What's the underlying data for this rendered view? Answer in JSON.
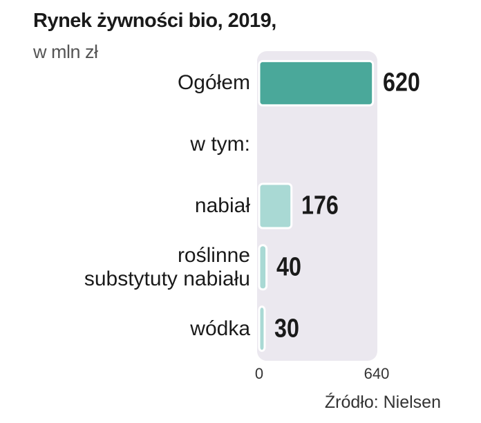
{
  "chart_data": {
    "type": "bar",
    "orientation": "horizontal",
    "title": "Rynek żywności bio, 2019,",
    "subtitle": "w mln zł",
    "categories": [
      "Ogółem",
      "w tym:",
      "nabiał",
      "roślinne\nsubstytuty nabiału",
      "wódka"
    ],
    "values": [
      620,
      null,
      176,
      40,
      30
    ],
    "colors": [
      "#4aa89a",
      null,
      "#a9d9d4",
      "#a9d9d4",
      "#a9d9d4"
    ],
    "xlim": [
      0,
      640
    ],
    "xticks": [
      0,
      640
    ],
    "source": "Źródło: Nielsen"
  }
}
